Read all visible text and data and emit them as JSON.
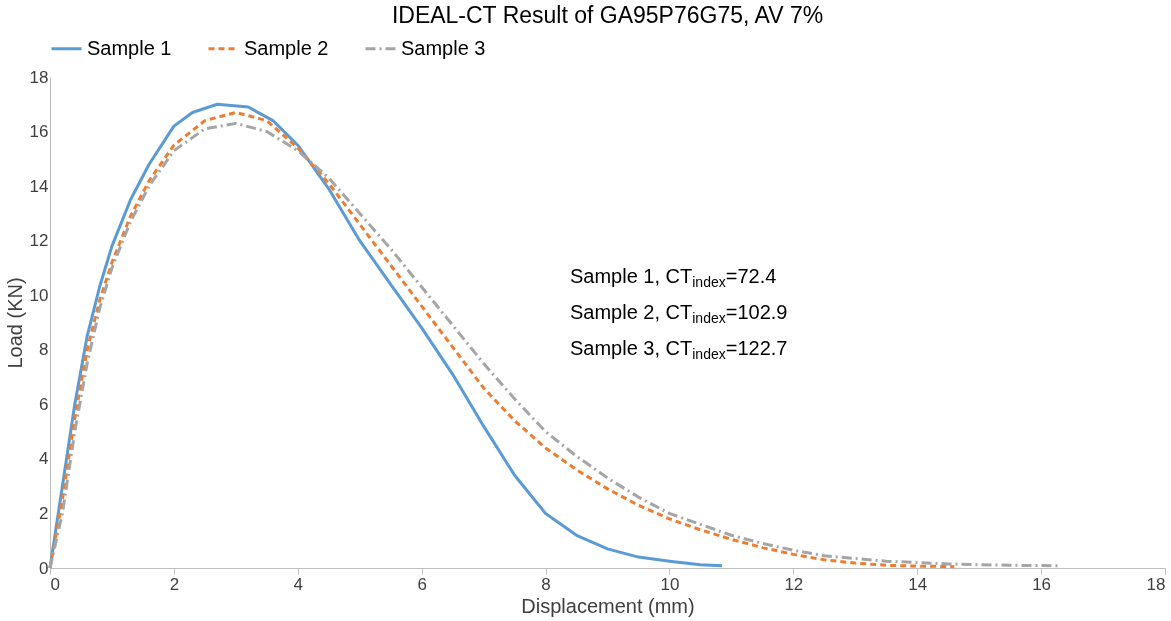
{
  "chart_data": {
    "type": "line",
    "title": "IDEAL-CT Result of GA95P76G75, AV 7%",
    "xlabel": "Displacement (mm)",
    "ylabel": "Load (KN)",
    "xlim": [
      0,
      18
    ],
    "xticks": [
      0,
      2,
      4,
      6,
      8,
      10,
      12,
      14,
      16,
      18
    ],
    "ylim": [
      0,
      18
    ],
    "yticks": [
      0,
      2,
      4,
      6,
      8,
      10,
      12,
      14,
      16,
      18
    ],
    "grid": false,
    "legend": "top",
    "annotations": [
      "Sample 1, CT$_{index}$=72.4",
      "Sample 2, CT$_{index}$=102.9",
      "Sample 3, CT$_{index}$=122.7"
    ],
    "series": [
      {
        "name": "Sample 1",
        "color": "#5b9bd5",
        "line_style": "solid",
        "x": [
          0,
          0.2,
          0.4,
          0.6,
          0.8,
          1,
          1.3,
          1.6,
          2,
          2.3,
          2.7,
          3.2,
          3.6,
          4,
          4.5,
          5,
          5.5,
          6,
          6.5,
          7,
          7.5,
          8,
          8.5,
          9,
          9.5,
          10,
          10.5,
          10.85
        ],
        "values": [
          0,
          3,
          6,
          8.5,
          10.3,
          11.8,
          13.5,
          14.8,
          16.2,
          16.7,
          17.0,
          16.9,
          16.4,
          15.5,
          13.9,
          12,
          10.4,
          8.8,
          7.1,
          5.2,
          3.4,
          2.0,
          1.2,
          0.7,
          0.4,
          0.25,
          0.12,
          0.08
        ]
      },
      {
        "name": "Sample 2",
        "color": "#ed7d31",
        "line_style": "dashed",
        "x": [
          0,
          0.2,
          0.4,
          0.6,
          0.8,
          1,
          1.3,
          1.6,
          2,
          2.5,
          3,
          3.5,
          4,
          4.5,
          5,
          5.5,
          6,
          6.5,
          7,
          7.5,
          8,
          8.5,
          9,
          9.5,
          10,
          10.5,
          11,
          11.5,
          12,
          12.5,
          13,
          13.5,
          14,
          14.6
        ],
        "values": [
          0,
          2.5,
          5.5,
          8,
          9.8,
          11.2,
          12.9,
          14.2,
          15.5,
          16.4,
          16.7,
          16.4,
          15.4,
          14.1,
          12.6,
          11.1,
          9.6,
          8.1,
          6.6,
          5.4,
          4.4,
          3.6,
          2.9,
          2.3,
          1.8,
          1.4,
          1.05,
          0.75,
          0.5,
          0.3,
          0.18,
          0.1,
          0.07,
          0.05
        ]
      },
      {
        "name": "Sample 3",
        "color": "#a5a5a5",
        "line_style": "dashdot",
        "x": [
          0,
          0.2,
          0.4,
          0.6,
          0.8,
          1,
          1.3,
          1.6,
          2,
          2.5,
          3,
          3.5,
          4,
          4.5,
          5,
          5.5,
          6,
          6.5,
          7,
          7.5,
          8,
          8.5,
          9,
          9.5,
          10,
          10.5,
          11,
          11.5,
          12,
          12.5,
          13,
          13.5,
          14,
          14.5,
          15,
          15.5,
          16.3
        ],
        "values": [
          0,
          2,
          5,
          7.5,
          9.5,
          11,
          12.7,
          14,
          15.3,
          16.1,
          16.3,
          16,
          15.3,
          14.3,
          13,
          11.7,
          10.3,
          8.9,
          7.5,
          6.2,
          5,
          4.1,
          3.3,
          2.6,
          2.0,
          1.6,
          1.2,
          0.9,
          0.65,
          0.45,
          0.35,
          0.25,
          0.2,
          0.15,
          0.12,
          0.1,
          0.08
        ]
      }
    ]
  }
}
